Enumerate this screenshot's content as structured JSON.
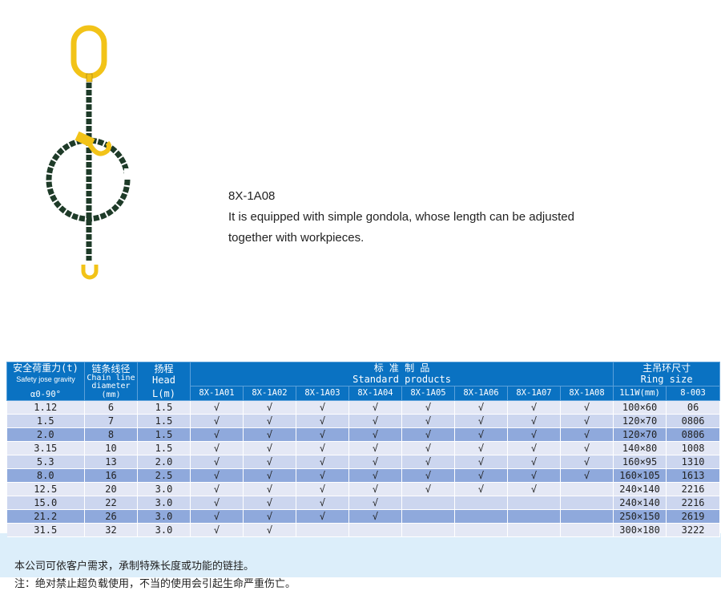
{
  "product": {
    "code": "8X-1A08",
    "description_line1": "It is equipped with simple gondola, whose length can be adjusted",
    "description_line2": "together with workpieces."
  },
  "colors": {
    "header": "#0a72c2",
    "chain": "#1e3b28",
    "fitting": "#f2c318",
    "row_light": "#e4e8f5",
    "row_mid": "#ccd6ef",
    "row_dark": "#8fa9dc"
  },
  "table": {
    "col1": {
      "cn": "安全荷重力(t)",
      "en": "Safety jose gravity",
      "angle": "α0-90°"
    },
    "col2": {
      "cn": "链条线径",
      "en1": "Chain line",
      "en2": "diameter",
      "unit": "(mm)"
    },
    "col3": {
      "cn": "扬程",
      "en": "Head",
      "unit": "L(m)"
    },
    "standard": {
      "cn": "标 准 制 品",
      "en": "Standard products"
    },
    "ring": {
      "cn": "主吊环尺寸",
      "en": "Ring size"
    },
    "models": [
      "8X-1A01",
      "8X-1A02",
      "8X-1A03",
      "8X-1A04",
      "8X-1A05",
      "8X-1A06",
      "8X-1A07",
      "8X-1A08"
    ],
    "ring_cols": [
      "1L1W(mm)",
      "8-003"
    ],
    "rows": [
      {
        "load": "1.12",
        "dia": "6",
        "head": "1.5",
        "checks": [
          "√",
          "√",
          "√",
          "√",
          "√",
          "√",
          "√",
          "√"
        ],
        "size": "100×60",
        "code": "06"
      },
      {
        "load": "1.5",
        "dia": "7",
        "head": "1.5",
        "checks": [
          "√",
          "√",
          "√",
          "√",
          "√",
          "√",
          "√",
          "√"
        ],
        "size": "120×70",
        "code": "0806"
      },
      {
        "load": "2.0",
        "dia": "8",
        "head": "1.5",
        "checks": [
          "√",
          "√",
          "√",
          "√",
          "√",
          "√",
          "√",
          "√"
        ],
        "size": "120×70",
        "code": "0806"
      },
      {
        "load": "3.15",
        "dia": "10",
        "head": "1.5",
        "checks": [
          "√",
          "√",
          "√",
          "√",
          "√",
          "√",
          "√",
          "√"
        ],
        "size": "140×80",
        "code": "1008"
      },
      {
        "load": "5.3",
        "dia": "13",
        "head": "2.0",
        "checks": [
          "√",
          "√",
          "√",
          "√",
          "√",
          "√",
          "√",
          "√"
        ],
        "size": "160×95",
        "code": "1310"
      },
      {
        "load": "8.0",
        "dia": "16",
        "head": "2.5",
        "checks": [
          "√",
          "√",
          "√",
          "√",
          "√",
          "√",
          "√",
          "√"
        ],
        "size": "160×105",
        "code": "1613"
      },
      {
        "load": "12.5",
        "dia": "20",
        "head": "3.0",
        "checks": [
          "√",
          "√",
          "√",
          "√",
          "√",
          "√",
          "√",
          ""
        ],
        "size": "240×140",
        "code": "2216"
      },
      {
        "load": "15.0",
        "dia": "22",
        "head": "3.0",
        "checks": [
          "√",
          "√",
          "√",
          "√",
          "",
          "",
          "",
          ""
        ],
        "size": "240×140",
        "code": "2216"
      },
      {
        "load": "21.2",
        "dia": "26",
        "head": "3.0",
        "checks": [
          "√",
          "√",
          "√",
          "√",
          "",
          "",
          "",
          ""
        ],
        "size": "250×150",
        "code": "2619"
      },
      {
        "load": "31.5",
        "dia": "32",
        "head": "3.0",
        "checks": [
          "√",
          "√",
          "",
          "",
          "",
          "",
          "",
          ""
        ],
        "size": "300×180",
        "code": "3222"
      }
    ]
  },
  "notes": {
    "line1": "本公司可依客户需求，承制特殊长度或功能的链挂。",
    "line2": "注：绝对禁止超负载使用，不当的使用会引起生命严重伤亡。"
  }
}
